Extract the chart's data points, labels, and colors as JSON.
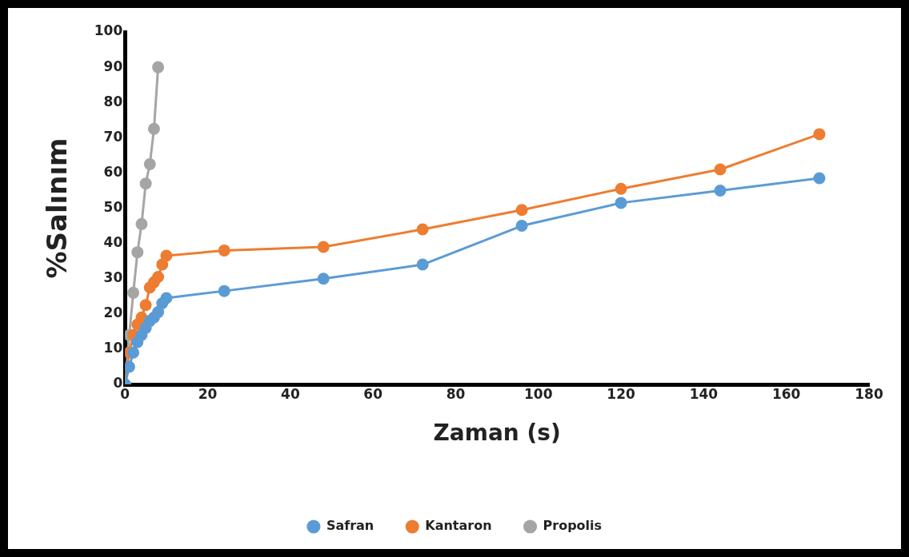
{
  "chart_data": {
    "type": "line",
    "xlabel": "Zaman (s)",
    "ylabel": "%Salınım",
    "xlim": [
      0,
      180
    ],
    "xticks": [
      0,
      20,
      40,
      60,
      80,
      100,
      120,
      140,
      160,
      180
    ],
    "ylim": [
      0,
      100
    ],
    "yticks": [
      0,
      10,
      20,
      30,
      40,
      50,
      60,
      70,
      80,
      90,
      100
    ],
    "grid": false,
    "legend": "bottom",
    "marker": "circle",
    "line_style": "solid",
    "series": [
      {
        "name": "Safran",
        "color": "#5b9bd5",
        "x": [
          0,
          1,
          2,
          3,
          4,
          5,
          6,
          7,
          8,
          9,
          10,
          24,
          48,
          72,
          96,
          120,
          144,
          168
        ],
        "values": [
          0,
          5,
          9,
          12,
          14,
          16,
          18,
          19,
          20.5,
          23,
          24.5,
          26.5,
          30,
          34,
          45,
          51.5,
          55,
          58.5
        ]
      },
      {
        "name": "Kantaron",
        "color": "#ed7d31",
        "x": [
          0,
          1,
          2,
          3,
          4,
          5,
          6,
          7,
          8,
          9,
          10,
          24,
          48,
          72,
          96,
          120,
          144,
          168
        ],
        "values": [
          0,
          9,
          14,
          17,
          19,
          22.5,
          27.5,
          29,
          30.5,
          34,
          36.5,
          38,
          39,
          44,
          49.5,
          55.5,
          61,
          71
        ]
      },
      {
        "name": "Propolis",
        "color": "#a5a5a5",
        "x": [
          0,
          1,
          2,
          3,
          4,
          5,
          6,
          7,
          8
        ],
        "values": [
          0,
          14,
          26,
          37.5,
          45.5,
          57,
          62.5,
          72.5,
          90
        ]
      }
    ]
  }
}
